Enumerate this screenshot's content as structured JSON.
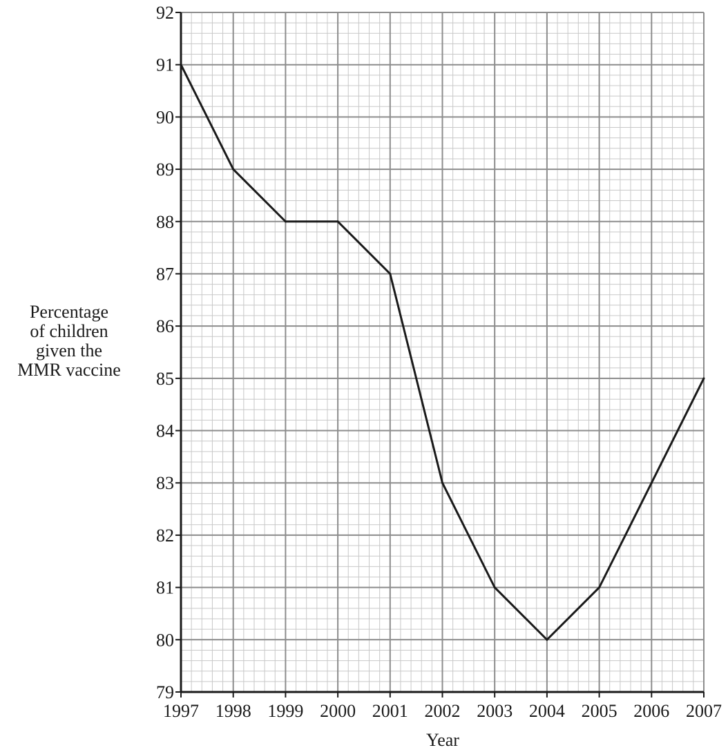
{
  "chart_data": {
    "type": "line",
    "x": [
      1997,
      1998,
      1999,
      2000,
      2001,
      2002,
      2003,
      2004,
      2005,
      2006,
      2007
    ],
    "series": [
      {
        "values": [
          91,
          89,
          88,
          88,
          87,
          83,
          81,
          80,
          81,
          83,
          85
        ]
      }
    ],
    "xlabel": "Year",
    "ylabel_lines": [
      "Percentage",
      "of children",
      "given the",
      "MMR vaccine"
    ],
    "x_ticks": [
      "1997",
      "1998",
      "1999",
      "2000",
      "2001",
      "2002",
      "2003",
      "2004",
      "2005",
      "2006",
      "2007"
    ],
    "y_ticks": [
      "79",
      "80",
      "81",
      "82",
      "83",
      "84",
      "85",
      "86",
      "87",
      "88",
      "89",
      "90",
      "91",
      "92"
    ],
    "xlim": [
      1997,
      2007
    ],
    "ylim": [
      79,
      92
    ],
    "grid": true,
    "minor_grid_per_major": 5,
    "colors": {
      "line": "#1a1a1a",
      "major_grid": "#8c8c8c",
      "minor_grid": "#c8c8c8",
      "axis": "#1a1a1a"
    }
  }
}
